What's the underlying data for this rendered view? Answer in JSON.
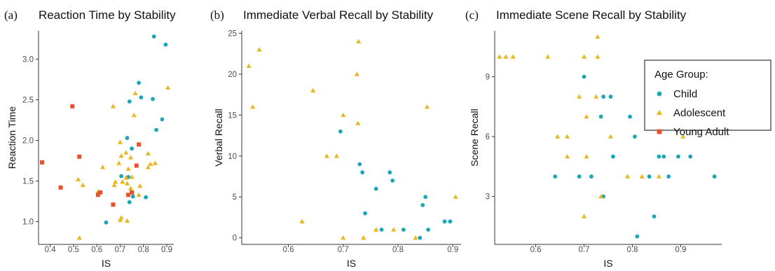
{
  "colors": {
    "Child": "#1aa6b7",
    "Adolescent": "#e9b820",
    "Young Adult": "#e8512c"
  },
  "legend": {
    "title": "Age Group:",
    "entries": [
      {
        "name": "Child",
        "shape": "circle"
      },
      {
        "name": "Adolescent",
        "shape": "triangle"
      },
      {
        "name": "Young Adult",
        "shape": "square"
      }
    ]
  },
  "chart_data": [
    {
      "type": "scatter",
      "panel_tag": "(a)",
      "title": "Reaction Time by Stability",
      "xlabel": "IS",
      "ylabel": "Reaction Time",
      "xlim": [
        0.35,
        0.93
      ],
      "ylim": [
        0.72,
        3.35
      ],
      "xticks": [
        0.4,
        0.5,
        0.6,
        0.7,
        0.8,
        0.9
      ],
      "xtick_labels": [
        "0.4",
        "0.5",
        "0.6",
        "0.7",
        "0.8",
        "0.9"
      ],
      "yticks": [
        1.0,
        1.5,
        2.0,
        2.5,
        3.0
      ],
      "ytick_labels": [
        "1.0",
        "1.5",
        "2.0",
        "2.5",
        "3.0"
      ],
      "series": [
        {
          "name": "Child",
          "points": [
            [
              0.845,
              3.28
            ],
            [
              0.895,
              3.18
            ],
            [
              0.78,
              2.71
            ],
            [
              0.79,
              2.53
            ],
            [
              0.74,
              2.48
            ],
            [
              0.84,
              2.51
            ],
            [
              0.88,
              2.26
            ],
            [
              0.855,
              2.13
            ],
            [
              0.73,
              2.03
            ],
            [
              0.75,
              1.9
            ],
            [
              0.705,
              1.56
            ],
            [
              0.735,
              1.55
            ],
            [
              0.81,
              1.3
            ],
            [
              0.755,
              1.31
            ],
            [
              0.74,
              1.24
            ],
            [
              0.64,
              0.99
            ]
          ]
        },
        {
          "name": "Adolescent",
          "points": [
            [
              0.905,
              2.65
            ],
            [
              0.765,
              2.58
            ],
            [
              0.67,
              2.42
            ],
            [
              0.76,
              2.31
            ],
            [
              0.7,
              1.98
            ],
            [
              0.725,
              1.85
            ],
            [
              0.705,
              1.81
            ],
            [
              0.745,
              1.79
            ],
            [
              0.82,
              1.84
            ],
            [
              0.695,
              1.72
            ],
            [
              0.83,
              1.71
            ],
            [
              0.85,
              1.72
            ],
            [
              0.82,
              1.67
            ],
            [
              0.625,
              1.67
            ],
            [
              0.735,
              1.65
            ],
            [
              0.75,
              1.55
            ],
            [
              0.725,
              1.54
            ],
            [
              0.71,
              1.49
            ],
            [
              0.73,
              1.47
            ],
            [
              0.68,
              1.49
            ],
            [
              0.52,
              1.52
            ],
            [
              0.54,
              1.45
            ],
            [
              0.675,
              1.45
            ],
            [
              0.785,
              1.44
            ],
            [
              0.605,
              1.37
            ],
            [
              0.745,
              1.41
            ],
            [
              0.78,
              1.33
            ],
            [
              0.705,
              1.05
            ],
            [
              0.7,
              1.02
            ],
            [
              0.73,
              1.01
            ],
            [
              0.525,
              0.8
            ]
          ]
        },
        {
          "name": "Young Adult",
          "points": [
            [
              0.495,
              2.42
            ],
            [
              0.78,
              1.95
            ],
            [
              0.525,
              1.8
            ],
            [
              0.365,
              1.73
            ],
            [
              0.77,
              1.69
            ],
            [
              0.75,
              1.36
            ],
            [
              0.615,
              1.36
            ],
            [
              0.605,
              1.33
            ],
            [
              0.735,
              1.33
            ],
            [
              0.445,
              1.42
            ],
            [
              0.67,
              1.21
            ]
          ]
        }
      ]
    },
    {
      "type": "scatter",
      "panel_tag": "(b)",
      "title": "Immediate Verbal Recall by Stability",
      "xlabel": "IS",
      "ylabel": "Verbal Recall",
      "xlim": [
        0.515,
        0.915
      ],
      "ylim": [
        -0.8,
        25.3
      ],
      "xticks": [
        0.6,
        0.7,
        0.8,
        0.9
      ],
      "xtick_labels": [
        "0.6",
        "0.7",
        "0.8",
        "0.9"
      ],
      "yticks": [
        0,
        5,
        10,
        15,
        20,
        25
      ],
      "ytick_labels": [
        "0",
        "5",
        "10",
        "15",
        "20",
        "25"
      ],
      "series": [
        {
          "name": "Child",
          "points": [
            [
              0.695,
              13
            ],
            [
              0.73,
              9
            ],
            [
              0.735,
              8
            ],
            [
              0.785,
              8
            ],
            [
              0.79,
              7
            ],
            [
              0.76,
              6
            ],
            [
              0.85,
              5
            ],
            [
              0.845,
              4
            ],
            [
              0.74,
              3
            ],
            [
              0.885,
              2
            ],
            [
              0.895,
              2
            ],
            [
              0.855,
              1
            ],
            [
              0.81,
              1
            ],
            [
              0.77,
              1
            ],
            [
              0.84,
              0
            ]
          ]
        },
        {
          "name": "Adolescent",
          "points": [
            [
              0.728,
              24
            ],
            [
              0.547,
              23
            ],
            [
              0.528,
              21
            ],
            [
              0.725,
              20
            ],
            [
              0.645,
              18
            ],
            [
              0.535,
              16
            ],
            [
              0.853,
              16
            ],
            [
              0.7,
              15
            ],
            [
              0.727,
              14
            ],
            [
              0.67,
              10
            ],
            [
              0.688,
              10
            ],
            [
              0.905,
              5
            ],
            [
              0.625,
              2
            ],
            [
              0.76,
              1
            ],
            [
              0.792,
              1
            ],
            [
              0.76,
              1
            ],
            [
              0.7,
              0
            ],
            [
              0.737,
              0
            ],
            [
              0.832,
              0
            ]
          ]
        },
        {
          "name": "Young Adult",
          "points": []
        }
      ]
    },
    {
      "type": "scatter",
      "panel_tag": "(c)",
      "title": "Immediate Scene Recall by Stability",
      "xlabel": "IS",
      "ylabel": "Scene Recall",
      "xlim": [
        0.515,
        0.985
      ],
      "ylim": [
        0.6,
        11.3
      ],
      "xticks": [
        0.6,
        0.7,
        0.8,
        0.9
      ],
      "xtick_labels": [
        "0.6",
        "0.7",
        "0.8",
        "0.9"
      ],
      "yticks": [
        3,
        6,
        9
      ],
      "ytick_labels": [
        "3",
        "6",
        "9"
      ],
      "series": [
        {
          "name": "Child",
          "points": [
            [
              0.7,
              9
            ],
            [
              0.74,
              8
            ],
            [
              0.755,
              8
            ],
            [
              0.795,
              7
            ],
            [
              0.735,
              7
            ],
            [
              0.805,
              6
            ],
            [
              0.855,
              5
            ],
            [
              0.865,
              5
            ],
            [
              0.895,
              5
            ],
            [
              0.92,
              5
            ],
            [
              0.76,
              5
            ],
            [
              0.715,
              4
            ],
            [
              0.69,
              4
            ],
            [
              0.64,
              4
            ],
            [
              0.835,
              4
            ],
            [
              0.875,
              4
            ],
            [
              0.97,
              4
            ],
            [
              0.74,
              3
            ],
            [
              0.845,
              2
            ],
            [
              0.81,
              1
            ]
          ]
        },
        {
          "name": "Adolescent",
          "points": [
            [
              0.525,
              10
            ],
            [
              0.538,
              10
            ],
            [
              0.553,
              10
            ],
            [
              0.625,
              10
            ],
            [
              0.7,
              10
            ],
            [
              0.728,
              10
            ],
            [
              0.728,
              11
            ],
            [
              0.69,
              8
            ],
            [
              0.725,
              8
            ],
            [
              0.705,
              7
            ],
            [
              0.755,
              6
            ],
            [
              0.645,
              6
            ],
            [
              0.905,
              6
            ],
            [
              0.665,
              6
            ],
            [
              0.665,
              5
            ],
            [
              0.705,
              5
            ],
            [
              0.79,
              4
            ],
            [
              0.82,
              4
            ],
            [
              0.855,
              4
            ],
            [
              0.735,
              3
            ],
            [
              0.7,
              2
            ]
          ]
        },
        {
          "name": "Young Adult",
          "points": []
        }
      ]
    }
  ]
}
